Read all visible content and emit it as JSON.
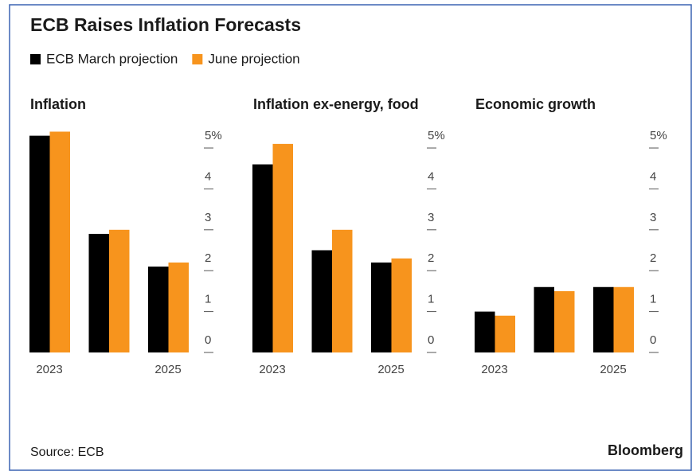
{
  "title": "ECB Raises Inflation Forecasts",
  "legend": [
    {
      "name": "ECB March projection",
      "color": "#000000"
    },
    {
      "name": "June projection",
      "color": "#f7941d"
    }
  ],
  "source": "Source: ECB",
  "brand": "Bloomberg",
  "chart_data": [
    {
      "type": "bar",
      "title": "Inflation",
      "categories": [
        "2023",
        null,
        "2025"
      ],
      "series": [
        {
          "values": [
            5.3,
            2.9,
            2.1
          ]
        },
        {
          "values": [
            5.4,
            3.0,
            2.2
          ]
        }
      ],
      "ylim": [
        0,
        5.3
      ],
      "yticks": [
        0,
        1,
        2,
        3,
        4,
        {
          "value": 5,
          "label": "5%"
        }
      ]
    },
    {
      "type": "bar",
      "title": "Inflation ex-energy, food",
      "categories": [
        "2023",
        null,
        "2025"
      ],
      "series": [
        {
          "values": [
            4.6,
            2.5,
            2.2
          ]
        },
        {
          "values": [
            5.1,
            3.0,
            2.3
          ]
        }
      ],
      "ylim": [
        0,
        5.3
      ],
      "yticks": [
        0,
        1,
        2,
        3,
        4,
        {
          "value": 5,
          "label": "5%"
        }
      ]
    },
    {
      "type": "bar",
      "title": "Economic growth",
      "categories": [
        "2023",
        null,
        "2025"
      ],
      "series": [
        {
          "values": [
            1.0,
            1.6,
            1.6
          ]
        },
        {
          "values": [
            0.9,
            1.5,
            1.6
          ]
        }
      ],
      "ylim": [
        0,
        5.3
      ],
      "yticks": [
        0,
        1,
        2,
        3,
        4,
        {
          "value": 5,
          "label": "5%"
        }
      ]
    }
  ]
}
